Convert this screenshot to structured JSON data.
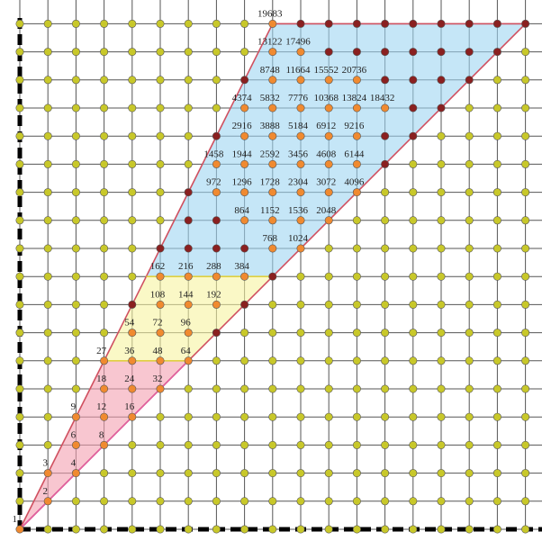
{
  "origin_label": "1",
  "numbers": [
    "2",
    "3",
    "4",
    "6",
    "8",
    "9",
    "12",
    "16",
    "18",
    "24",
    "32",
    "27",
    "36",
    "48",
    "64",
    "54",
    "72",
    "96",
    "108",
    "144",
    "192",
    "162",
    "216",
    "288",
    "384",
    "768",
    "1024",
    "864",
    "1152",
    "1536",
    "2048",
    "972",
    "1296",
    "1728",
    "2304",
    "3072",
    "4096",
    "1458",
    "1944",
    "2592",
    "3456",
    "4608",
    "6144",
    "2916",
    "3888",
    "5184",
    "6912",
    "9216",
    "4374",
    "5832",
    "7776",
    "10368",
    "13824",
    "18432",
    "8748",
    "11664",
    "15552",
    "20736",
    "13122",
    "17496",
    "19683"
  ]
}
